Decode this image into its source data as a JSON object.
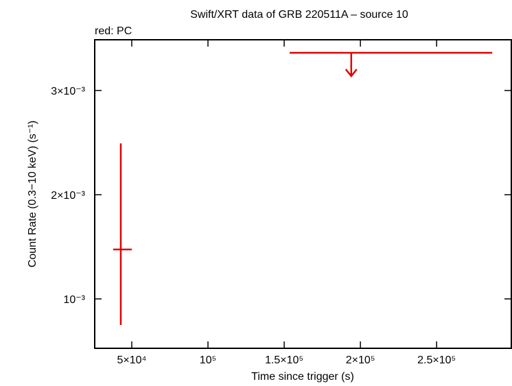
{
  "chart_data": {
    "type": "errorbar",
    "title": "Swift/XRT data of GRB 220511A – source 10",
    "legend_text": "red: PC",
    "x_label": "Time since trigger (s)",
    "y_label": "Count Rate (0.3−10 keV) (s⁻¹)",
    "xlim": [
      25700,
      299000
    ],
    "ylim": [
      0.000526,
      0.003487
    ],
    "xticks": [
      {
        "value": 50000,
        "label": "5×10⁴"
      },
      {
        "value": 100000,
        "label": "10⁵"
      },
      {
        "value": 150000,
        "label": "1.5×10⁵"
      },
      {
        "value": 200000,
        "label": "2×10⁵"
      },
      {
        "value": 250000,
        "label": "2.5×10⁵"
      }
    ],
    "yticks": [
      {
        "value": 0.001,
        "label": "10⁻³"
      },
      {
        "value": 0.002,
        "label": "2×10⁻³"
      },
      {
        "value": 0.003,
        "label": "3×10⁻³"
      }
    ],
    "series": [
      {
        "color": "#e00000",
        "x": [
          42800
        ],
        "x_lo": [
          37800
        ],
        "x_hi": [
          50000
        ],
        "values": [
          0.001474
        ],
        "y_lo": [
          0.00075
        ],
        "y_hi": [
          0.002493
        ]
      }
    ],
    "upper_limits": {
      "color": "#e00000",
      "x": [
        194000
      ],
      "x_lo": [
        153600
      ],
      "x_hi": [
        286500
      ],
      "values": [
        0.003362
      ]
    }
  }
}
